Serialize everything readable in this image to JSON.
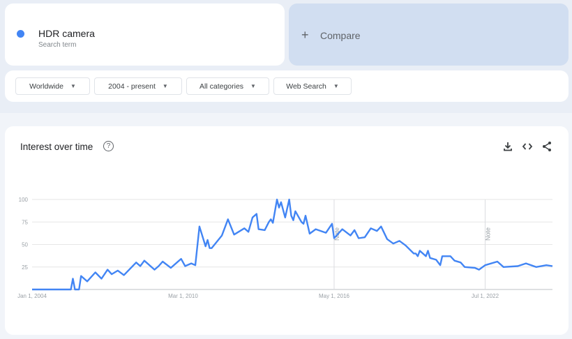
{
  "search_term": {
    "name": "HDR camera",
    "subtitle": "Search term",
    "color": "#4285f4"
  },
  "compare": {
    "icon": "plus-icon",
    "label": "Compare"
  },
  "filters": [
    {
      "label": "Worldwide"
    },
    {
      "label": "2004 - present"
    },
    {
      "label": "All categories"
    },
    {
      "label": "Web Search"
    }
  ],
  "panel": {
    "title": "Interest over time",
    "help_icon": "help-circle-icon",
    "tools": [
      "download-icon",
      "embed-code-icon",
      "share-icon"
    ]
  },
  "chart_data": {
    "type": "line",
    "title": "",
    "xlabel": "",
    "ylabel": "",
    "ylim": [
      0,
      100
    ],
    "yticks": [
      25,
      50,
      75,
      100
    ],
    "xticks": [
      {
        "date": "2004-01",
        "label": "Jan 1, 2004"
      },
      {
        "date": "2010-03",
        "label": "Mar 1, 2010"
      },
      {
        "date": "2016-05",
        "label": "May 1, 2016"
      },
      {
        "date": "2022-07",
        "label": "Jul 1, 2022"
      }
    ],
    "annotations": [
      {
        "date": "2016-05",
        "label": "Note"
      },
      {
        "date": "2022-07",
        "label": "Note"
      }
    ],
    "grid": true,
    "color": "#4285f4",
    "series": [
      {
        "points": [
          [
            "2004-01",
            0
          ],
          [
            "2005-08",
            0
          ],
          [
            "2005-09",
            12
          ],
          [
            "2005-10",
            0
          ],
          [
            "2005-12",
            0
          ],
          [
            "2006-01",
            15
          ],
          [
            "2006-04",
            9
          ],
          [
            "2006-08",
            19
          ],
          [
            "2006-11",
            12
          ],
          [
            "2007-02",
            22
          ],
          [
            "2007-04",
            17
          ],
          [
            "2007-07",
            21
          ],
          [
            "2007-10",
            16
          ],
          [
            "2008-04",
            30
          ],
          [
            "2008-06",
            26
          ],
          [
            "2008-08",
            32
          ],
          [
            "2009-01",
            22
          ],
          [
            "2009-03",
            26
          ],
          [
            "2009-05",
            31
          ],
          [
            "2009-09",
            24
          ],
          [
            "2010-02",
            34
          ],
          [
            "2010-04",
            26
          ],
          [
            "2010-07",
            29
          ],
          [
            "2010-09",
            27
          ],
          [
            "2010-11",
            70
          ],
          [
            "2011-02",
            48
          ],
          [
            "2011-03",
            55
          ],
          [
            "2011-04",
            46
          ],
          [
            "2011-05",
            46
          ],
          [
            "2011-10",
            60
          ],
          [
            "2012-01",
            78
          ],
          [
            "2012-04",
            61
          ],
          [
            "2012-09",
            68
          ],
          [
            "2012-11",
            64
          ],
          [
            "2013-01",
            80
          ],
          [
            "2013-03",
            84
          ],
          [
            "2013-04",
            67
          ],
          [
            "2013-07",
            66
          ],
          [
            "2013-09",
            75
          ],
          [
            "2013-10",
            78
          ],
          [
            "2013-11",
            74
          ],
          [
            "2014-01",
            100
          ],
          [
            "2014-02",
            91
          ],
          [
            "2014-03",
            97
          ],
          [
            "2014-05",
            80
          ],
          [
            "2014-07",
            100
          ],
          [
            "2014-08",
            82
          ],
          [
            "2014-09",
            77
          ],
          [
            "2014-10",
            87
          ],
          [
            "2015-01",
            75
          ],
          [
            "2015-02",
            73
          ],
          [
            "2015-03",
            82
          ],
          [
            "2015-05",
            62
          ],
          [
            "2015-08",
            67
          ],
          [
            "2016-01",
            63
          ],
          [
            "2016-04",
            73
          ],
          [
            "2016-05",
            57
          ],
          [
            "2016-09",
            67
          ],
          [
            "2017-01",
            60
          ],
          [
            "2017-03",
            66
          ],
          [
            "2017-05",
            57
          ],
          [
            "2017-08",
            58
          ],
          [
            "2017-11",
            68
          ],
          [
            "2018-02",
            65
          ],
          [
            "2018-04",
            70
          ],
          [
            "2018-07",
            56
          ],
          [
            "2018-10",
            51
          ],
          [
            "2019-01",
            54
          ],
          [
            "2019-04",
            49
          ],
          [
            "2019-08",
            40
          ],
          [
            "2019-09",
            40
          ],
          [
            "2019-10",
            37
          ],
          [
            "2019-11",
            43
          ],
          [
            "2020-02",
            37
          ],
          [
            "2020-03",
            43
          ],
          [
            "2020-04",
            35
          ],
          [
            "2020-07",
            33
          ],
          [
            "2020-09",
            27
          ],
          [
            "2020-10",
            37
          ],
          [
            "2021-02",
            37
          ],
          [
            "2021-04",
            32
          ],
          [
            "2021-07",
            30
          ],
          [
            "2021-09",
            25
          ],
          [
            "2022-02",
            24
          ],
          [
            "2022-04",
            22
          ],
          [
            "2022-07",
            27
          ],
          [
            "2023-01",
            31
          ],
          [
            "2023-04",
            25
          ],
          [
            "2023-11",
            26
          ],
          [
            "2024-03",
            29
          ],
          [
            "2024-08",
            25
          ],
          [
            "2025-01",
            27
          ],
          [
            "2025-04",
            26
          ]
        ]
      }
    ]
  }
}
